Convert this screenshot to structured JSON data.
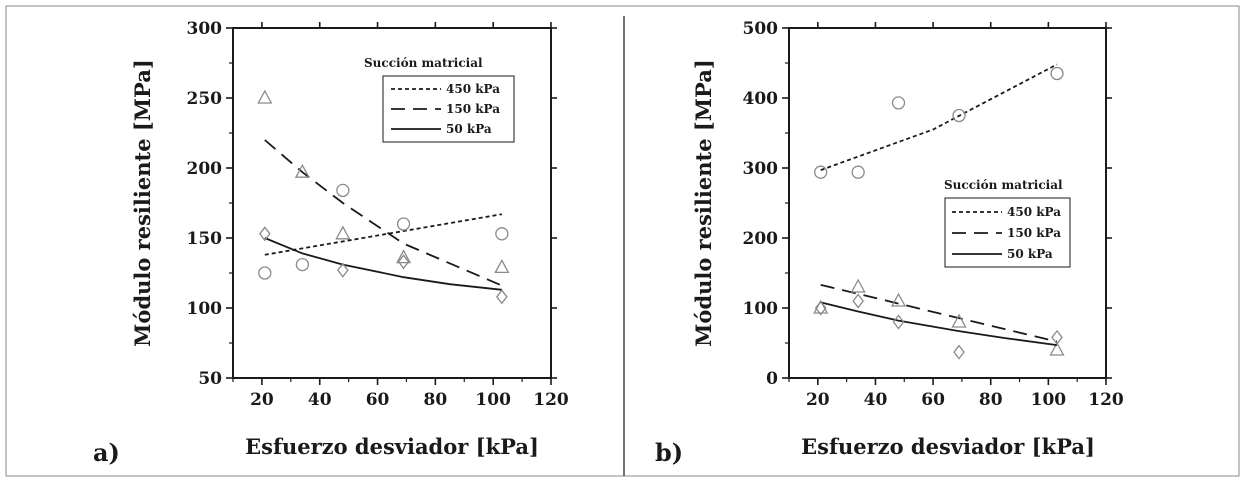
{
  "chart_data": [
    {
      "type": "scatter",
      "panel_label": "a)",
      "title": "",
      "xlabel": "Esfuerzo desviador [kPa]",
      "ylabel": "Módulo resiliente [MPa]",
      "xlim": [
        10,
        120
      ],
      "ylim": [
        50,
        300
      ],
      "xticks": [
        "20",
        "40",
        "60",
        "80",
        "100",
        "120"
      ],
      "yticks": [
        "50",
        "100",
        "150",
        "200",
        "250",
        "300"
      ],
      "legend_title": "Succión matricial",
      "legend_position": "top-right",
      "series": [
        {
          "name": "450 kPa",
          "marker": "circle",
          "line_style": "short-dash",
          "x": [
            21,
            34,
            48,
            69,
            103
          ],
          "y": [
            125,
            131,
            184,
            160,
            153
          ],
          "fit_x": [
            21,
            103
          ],
          "fit_y": [
            138,
            167
          ]
        },
        {
          "name": "150 kPa",
          "marker": "triangle",
          "line_style": "long-dash",
          "x": [
            21,
            34,
            48,
            69,
            103
          ],
          "y": [
            250,
            197,
            153,
            136,
            129
          ],
          "fit_x": [
            21,
            34,
            48,
            69,
            103
          ],
          "fit_y": [
            220,
            197,
            175,
            146,
            116
          ]
        },
        {
          "name": "50 kPa",
          "marker": "diamond",
          "line_style": "solid",
          "x": [
            21,
            48,
            69,
            103
          ],
          "y": [
            153,
            127,
            133,
            108
          ],
          "fit_x": [
            21,
            34,
            48,
            69,
            85,
            103
          ],
          "fit_y": [
            150,
            139,
            131,
            122,
            117,
            113
          ]
        }
      ]
    },
    {
      "type": "scatter",
      "panel_label": "b)",
      "title": "",
      "xlabel": "Esfuerzo desviador [kPa]",
      "ylabel": "Módulo resiliente [MPa]",
      "xlim": [
        10,
        120
      ],
      "ylim": [
        0,
        500
      ],
      "xticks": [
        "20",
        "40",
        "60",
        "80",
        "100",
        "120"
      ],
      "yticks": [
        "0",
        "100",
        "200",
        "300",
        "400",
        "500"
      ],
      "legend_title": "Succión matricial",
      "legend_position": "center-right",
      "series": [
        {
          "name": "450 kPa",
          "marker": "circle",
          "line_style": "short-dash",
          "x": [
            21,
            34,
            48,
            69,
            103
          ],
          "y": [
            294,
            294,
            393,
            375,
            435
          ],
          "fit_x": [
            21,
            60,
            103
          ],
          "fit_y": [
            297,
            355,
            448
          ]
        },
        {
          "name": "150 kPa",
          "marker": "triangle",
          "line_style": "long-dash",
          "x": [
            21,
            34,
            48,
            69,
            103
          ],
          "y": [
            100,
            130,
            110,
            80,
            40
          ],
          "fit_x": [
            21,
            103
          ],
          "fit_y": [
            133,
            52
          ]
        },
        {
          "name": "50 kPa",
          "marker": "diamond",
          "line_style": "solid",
          "x": [
            21,
            34,
            48,
            69,
            103
          ],
          "y": [
            100,
            110,
            80,
            37,
            58
          ],
          "fit_x": [
            21,
            34,
            48,
            69,
            85,
            103
          ],
          "fit_y": [
            108,
            95,
            82,
            67,
            57,
            47
          ]
        }
      ]
    }
  ],
  "colors": {
    "ink": "#1a1a1a",
    "marker": "#8a8a8a",
    "border": "#555555"
  }
}
